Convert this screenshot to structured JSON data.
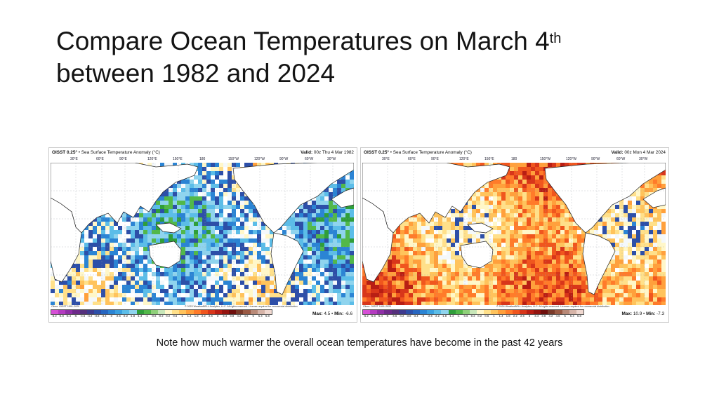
{
  "slide": {
    "title_line1": "Compare Ocean Temperatures on March 4",
    "title_sup": "th",
    "title_line2": "between  1982 and 2024",
    "note": "Note how much warmer the overall ocean temperatures have become in the past 42 years"
  },
  "maps": [
    {
      "dataset": "OISST 0.25°",
      "product": "• Sea Surface Temperature Anomaly (°C)",
      "valid_label": "Valid:",
      "valid_value": "00z Thu 4 Mar 1982",
      "climo": "Climo: OISST 1991-2020",
      "copyright": "© 2023 WeatherBELL Analytics, LLC. All rights reserved. License required for commercial distribution",
      "max_label": "Max:",
      "max_value": "4.5",
      "min_label": "Min:",
      "min_value": "-6.6",
      "anomaly_bias": -0.35
    },
    {
      "dataset": "OISST 0.25°",
      "product": "• Sea Surface Temperature Anomaly (°C)",
      "valid_label": "Valid:",
      "valid_value": "00z Mon 4 Mar 2024",
      "climo": "Climo: OISST 1991-2020",
      "copyright": "© 2024 WeatherBELL Analytics, LLC. All rights reserved. License required for commercial distribution",
      "max_label": "Max:",
      "max_value": "10.9",
      "min_label": "Min:",
      "min_value": "-7.3",
      "anomaly_bias": 0.85
    }
  ],
  "longitude_labels": [
    "30°E",
    "60°E",
    "90°E",
    "120°E",
    "150°E",
    "180",
    "150°W",
    "120°W",
    "90°W",
    "60°W",
    "30°W"
  ],
  "colorbar_ticks": [
    "-6.2",
    "-5.8",
    "-5.4",
    "-5",
    "-4.6",
    "-4.2",
    "-3.8",
    "-3.4",
    "-3",
    "-2.6",
    "-2.2",
    "-1.8",
    "-1.4",
    "-1",
    "-0.6",
    "-0.2",
    "0.2",
    "0.6",
    "1",
    "1.4",
    "1.8",
    "2.2",
    "2.6",
    "3",
    "3.4",
    "3.8",
    "4.2",
    "4.6",
    "5",
    "5.4",
    "5.8"
  ],
  "colorbar_colors": [
    "#d64fd6",
    "#b43bc0",
    "#8f2fa6",
    "#6d2a8a",
    "#55307c",
    "#3e3a8e",
    "#2d4fa8",
    "#2766c0",
    "#2b84d4",
    "#3aa0e0",
    "#5cbde8",
    "#8fd4ee",
    "#2f9e3a",
    "#52b84a",
    "#8fd07a",
    "#c7e6b8",
    "#fff7c9",
    "#ffe08a",
    "#ffc35c",
    "#ffa03c",
    "#ff7b2a",
    "#f0561e",
    "#d8361a",
    "#b81e14",
    "#941410",
    "#6e0e0c",
    "#7a3a2a",
    "#9a5a44",
    "#b98a78",
    "#d6b4a8",
    "#f0d8d0"
  ]
}
